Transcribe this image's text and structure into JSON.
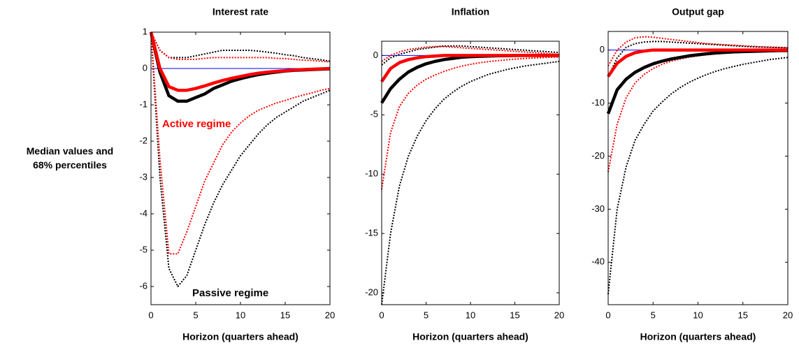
{
  "chart_data": [
    {
      "type": "line",
      "title": "Interest rate",
      "xlabel": "Horizon (quarters ahead)",
      "ylabel": "Median values and 68% percentiles",
      "x": [
        0,
        1,
        2,
        3,
        4,
        5,
        6,
        7,
        8,
        9,
        10,
        11,
        12,
        13,
        14,
        15,
        16,
        17,
        18,
        19,
        20
      ],
      "xlim": [
        0,
        20
      ],
      "xticks": [
        0,
        5,
        10,
        15,
        20
      ],
      "ylim": [
        -6.5,
        1
      ],
      "yticks": [
        -6,
        -5,
        -4,
        -3,
        -2,
        -1,
        0,
        1
      ],
      "reference_line": 0,
      "reference_color": "#0000ff",
      "series": [
        {
          "color": "#000000",
          "dash": "dotted",
          "values": [
            1,
            0.5,
            0.3,
            0.3,
            0.3,
            0.35,
            0.4,
            0.45,
            0.5,
            0.5,
            0.5,
            0.5,
            0.48,
            0.45,
            0.42,
            0.38,
            0.35,
            0.3,
            0.27,
            0.24,
            0.2
          ]
        },
        {
          "color": "#ff0000",
          "dash": "dotted",
          "values": [
            1,
            0.5,
            0.3,
            0.25,
            0.25,
            0.25,
            0.28,
            0.3,
            0.3,
            0.3,
            0.3,
            0.3,
            0.3,
            0.3,
            0.28,
            0.27,
            0.25,
            0.23,
            0.22,
            0.2,
            0.18
          ]
        },
        {
          "color": "#000000",
          "dash": "dotted",
          "values": [
            1,
            -3,
            -5.5,
            -6,
            -5.7,
            -5,
            -4.3,
            -3.7,
            -3.2,
            -2.8,
            -2.4,
            -2.1,
            -1.8,
            -1.55,
            -1.35,
            -1.2,
            -1.05,
            -0.9,
            -0.8,
            -0.7,
            -0.6
          ]
        },
        {
          "color": "#ff0000",
          "dash": "dotted",
          "values": [
            1,
            -2.5,
            -5.1,
            -5.1,
            -4.5,
            -3.8,
            -3.1,
            -2.6,
            -2.1,
            -1.75,
            -1.5,
            -1.3,
            -1.15,
            -1.05,
            -0.95,
            -0.88,
            -0.8,
            -0.73,
            -0.67,
            -0.6,
            -0.55
          ]
        },
        {
          "name": "Passive regime",
          "color": "#000000",
          "dash": "solid",
          "values": [
            1,
            -0.1,
            -0.75,
            -0.9,
            -0.9,
            -0.8,
            -0.7,
            -0.55,
            -0.45,
            -0.35,
            -0.28,
            -0.22,
            -0.17,
            -0.13,
            -0.1,
            -0.07,
            -0.05,
            -0.04,
            -0.03,
            -0.02,
            -0.01
          ]
        },
        {
          "name": "Active regime",
          "color": "#ff0000",
          "dash": "solid",
          "values": [
            1,
            0,
            -0.5,
            -0.6,
            -0.6,
            -0.55,
            -0.48,
            -0.4,
            -0.33,
            -0.27,
            -0.22,
            -0.17,
            -0.13,
            -0.1,
            -0.08,
            -0.06,
            -0.04,
            -0.03,
            -0.02,
            -0.01,
            0
          ]
        }
      ]
    },
    {
      "type": "line",
      "title": "Inflation",
      "xlabel": "Horizon (quarters ahead)",
      "x": [
        0,
        1,
        2,
        3,
        4,
        5,
        6,
        7,
        8,
        9,
        10,
        11,
        12,
        13,
        14,
        15,
        16,
        17,
        18,
        19,
        20
      ],
      "xlim": [
        0,
        20
      ],
      "xticks": [
        0,
        5,
        10,
        15,
        20
      ],
      "ylim": [
        -21,
        1.2
      ],
      "yticks": [
        -20,
        -15,
        -10,
        -5,
        0
      ],
      "reference_line": 0,
      "reference_color": "#0000ff",
      "series": [
        {
          "color": "#000000",
          "dash": "dotted",
          "values": [
            -0.8,
            -0.2,
            0.1,
            0.3,
            0.5,
            0.6,
            0.7,
            0.8,
            0.8,
            0.8,
            0.75,
            0.7,
            0.65,
            0.6,
            0.55,
            0.5,
            0.45,
            0.4,
            0.35,
            0.3,
            0.25
          ]
        },
        {
          "color": "#ff0000",
          "dash": "dotted",
          "values": [
            -0.5,
            0,
            0.3,
            0.5,
            0.6,
            0.7,
            0.75,
            0.75,
            0.7,
            0.65,
            0.6,
            0.55,
            0.5,
            0.45,
            0.4,
            0.35,
            0.3,
            0.25,
            0.2,
            0.15,
            0.1
          ]
        },
        {
          "color": "#000000",
          "dash": "dotted",
          "values": [
            -21,
            -15,
            -11,
            -8.5,
            -6.8,
            -5.5,
            -4.5,
            -3.7,
            -3.1,
            -2.6,
            -2.2,
            -1.9,
            -1.6,
            -1.4,
            -1.2,
            -1.05,
            -0.9,
            -0.8,
            -0.7,
            -0.6,
            -0.5
          ]
        },
        {
          "color": "#ff0000",
          "dash": "dotted",
          "values": [
            -11.3,
            -6.5,
            -4.3,
            -3.2,
            -2.5,
            -2,
            -1.65,
            -1.35,
            -1.1,
            -0.9,
            -0.75,
            -0.62,
            -0.52,
            -0.44,
            -0.37,
            -0.31,
            -0.26,
            -0.22,
            -0.18,
            -0.15,
            -0.12
          ]
        },
        {
          "color": "#000000",
          "dash": "solid",
          "values": [
            -4,
            -2.8,
            -2,
            -1.4,
            -1,
            -0.7,
            -0.5,
            -0.35,
            -0.25,
            -0.15,
            -0.1,
            -0.07,
            -0.05,
            -0.03,
            -0.02,
            -0.01,
            0,
            0,
            0,
            0,
            0
          ]
        },
        {
          "color": "#ff0000",
          "dash": "solid",
          "values": [
            -2.2,
            -1.1,
            -0.6,
            -0.35,
            -0.2,
            -0.1,
            -0.05,
            0,
            0,
            0,
            0,
            0,
            0,
            0,
            0,
            0,
            0,
            0,
            0,
            0,
            0
          ]
        }
      ]
    },
    {
      "type": "line",
      "title": "Output gap",
      "xlabel": "Horizon (quarters ahead)",
      "x": [
        0,
        1,
        2,
        3,
        4,
        5,
        6,
        7,
        8,
        9,
        10,
        11,
        12,
        13,
        14,
        15,
        16,
        17,
        18,
        19,
        20
      ],
      "xlim": [
        0,
        20
      ],
      "xticks": [
        0,
        5,
        10,
        15,
        20
      ],
      "ylim": [
        -48,
        3.5
      ],
      "yticks": [
        -40,
        -30,
        -20,
        -10,
        0
      ],
      "reference_line": 0,
      "reference_color": "#0000ff",
      "series": [
        {
          "color": "#000000",
          "dash": "dotted",
          "values": [
            -5,
            -1.5,
            0.5,
            1.2,
            1.5,
            1.6,
            1.6,
            1.5,
            1.4,
            1.3,
            1.2,
            1.1,
            1,
            0.9,
            0.8,
            0.7,
            0.6,
            0.55,
            0.5,
            0.45,
            0.4
          ]
        },
        {
          "color": "#ff0000",
          "dash": "dotted",
          "values": [
            -3,
            0,
            1.5,
            2.3,
            2.5,
            2.4,
            2.2,
            2,
            1.8,
            1.6,
            1.4,
            1.2,
            1.1,
            1,
            0.9,
            0.8,
            0.7,
            0.6,
            0.55,
            0.5,
            0.45
          ]
        },
        {
          "color": "#000000",
          "dash": "dotted",
          "values": [
            -46,
            -30,
            -22,
            -17,
            -14,
            -11.5,
            -9.8,
            -8.3,
            -7.1,
            -6.1,
            -5.3,
            -4.6,
            -4,
            -3.5,
            -3.1,
            -2.7,
            -2.4,
            -2.1,
            -1.8,
            -1.6,
            -1.4
          ]
        },
        {
          "color": "#ff0000",
          "dash": "dotted",
          "values": [
            -23,
            -14,
            -9,
            -6.2,
            -4.6,
            -3.5,
            -2.7,
            -2.1,
            -1.7,
            -1.35,
            -1.1,
            -0.9,
            -0.75,
            -0.6,
            -0.5,
            -0.42,
            -0.35,
            -0.3,
            -0.25,
            -0.2,
            -0.17
          ]
        },
        {
          "color": "#000000",
          "dash": "solid",
          "values": [
            -12,
            -7.5,
            -5.5,
            -4.2,
            -3.3,
            -2.6,
            -2.1,
            -1.7,
            -1.4,
            -1.1,
            -0.9,
            -0.7,
            -0.55,
            -0.45,
            -0.35,
            -0.3,
            -0.25,
            -0.2,
            -0.15,
            -0.1,
            -0.1
          ]
        },
        {
          "color": "#ff0000",
          "dash": "solid",
          "values": [
            -5,
            -2.5,
            -1.2,
            -0.5,
            -0.2,
            0,
            0,
            0,
            0,
            0,
            0,
            0,
            0,
            0,
            0,
            0,
            0,
            0,
            0,
            0,
            0
          ]
        }
      ]
    }
  ]
}
